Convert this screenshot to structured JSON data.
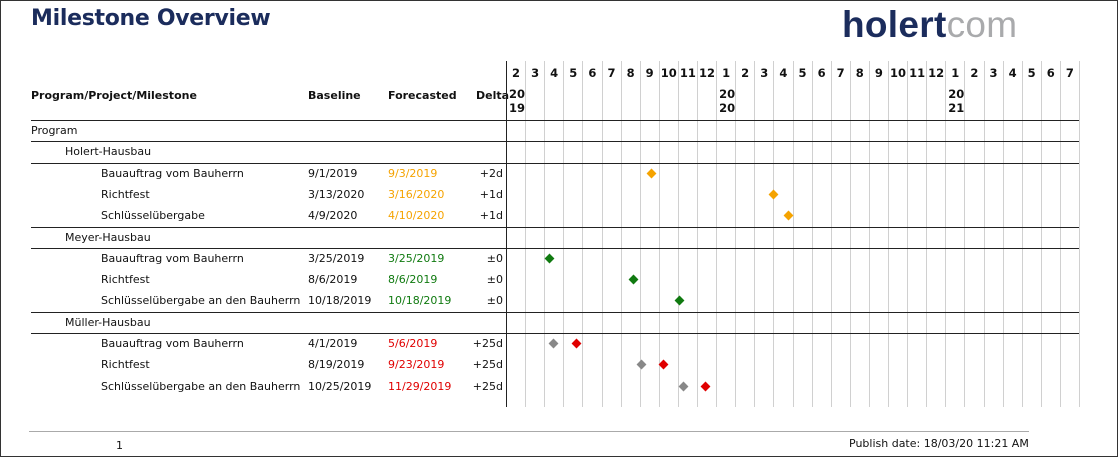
{
  "title": "Milestone Overview",
  "logo": {
    "part1": "holert",
    "part2": "com"
  },
  "colors": {
    "title": "#1b2c5c",
    "orange": "#f5a300",
    "green": "#107a10",
    "red": "#e00000",
    "gray": "#888888"
  },
  "columns": {
    "program": "Program/Project/Milestone",
    "baseline": "Baseline",
    "forecasted": "Forecasted",
    "delta": "Delta"
  },
  "timeline": {
    "months": [
      "2",
      "3",
      "4",
      "5",
      "6",
      "7",
      "8",
      "9",
      "10",
      "11",
      "12",
      "1",
      "2",
      "3",
      "4",
      "5",
      "6",
      "7",
      "8",
      "9",
      "10",
      "11",
      "12",
      "1",
      "2",
      "3",
      "4",
      "5",
      "6",
      "7"
    ],
    "years": [
      {
        "label1": "20",
        "label2": "19",
        "month_index": 0
      },
      {
        "label1": "20",
        "label2": "20",
        "month_index": 11
      },
      {
        "label1": "20",
        "label2": "21",
        "month_index": 23
      }
    ]
  },
  "program_label": "Program",
  "projects": [
    {
      "name": "Holert-Hausbau",
      "milestones": [
        {
          "name": "Bauauftrag vom Bauherrn",
          "baseline": "9/1/2019",
          "forecast": "9/3/2019",
          "delta": "+2d",
          "status": "orange",
          "month_index": 7.1
        },
        {
          "name": "Richtfest",
          "baseline": "3/13/2020",
          "forecast": "3/16/2020",
          "delta": "+1d",
          "status": "orange",
          "month_index": 13.5
        },
        {
          "name": "Schlüsselübergabe",
          "baseline": "4/9/2020",
          "forecast": "4/10/2020",
          "delta": "+1d",
          "status": "orange",
          "month_index": 14.3
        }
      ]
    },
    {
      "name": "Meyer-Hausbau",
      "milestones": [
        {
          "name": "Bauauftrag vom Bauherrn",
          "baseline": "3/25/2019",
          "forecast": "3/25/2019",
          "delta": "±0",
          "status": "green",
          "month_index": 1.8
        },
        {
          "name": "Richtfest",
          "baseline": "8/6/2019",
          "forecast": "8/6/2019",
          "delta": "±0",
          "status": "green",
          "month_index": 6.2
        },
        {
          "name": "Schlüsselübergabe an den Bauherrn",
          "baseline": "10/18/2019",
          "forecast": "10/18/2019",
          "delta": "±0",
          "status": "green",
          "month_index": 8.6
        }
      ]
    },
    {
      "name": "Müller-Hausbau",
      "milestones": [
        {
          "name": "Bauauftrag vom Bauherrn",
          "baseline": "4/1/2019",
          "forecast": "5/6/2019",
          "delta": "+25d",
          "status": "red",
          "baseline_index": 2.0,
          "month_index": 3.2
        },
        {
          "name": "Richtfest",
          "baseline": "8/19/2019",
          "forecast": "9/23/2019",
          "delta": "+25d",
          "status": "red",
          "baseline_index": 6.6,
          "month_index": 7.75
        },
        {
          "name": "Schlüsselübergabe an den Bauherrn",
          "baseline": "10/25/2019",
          "forecast": "11/29/2019",
          "delta": "+25d",
          "status": "red",
          "baseline_index": 8.8,
          "month_index": 9.95
        }
      ]
    }
  ],
  "footer": {
    "page": "1",
    "publish": "Publish date: 18/03/20 11:21 AM"
  }
}
